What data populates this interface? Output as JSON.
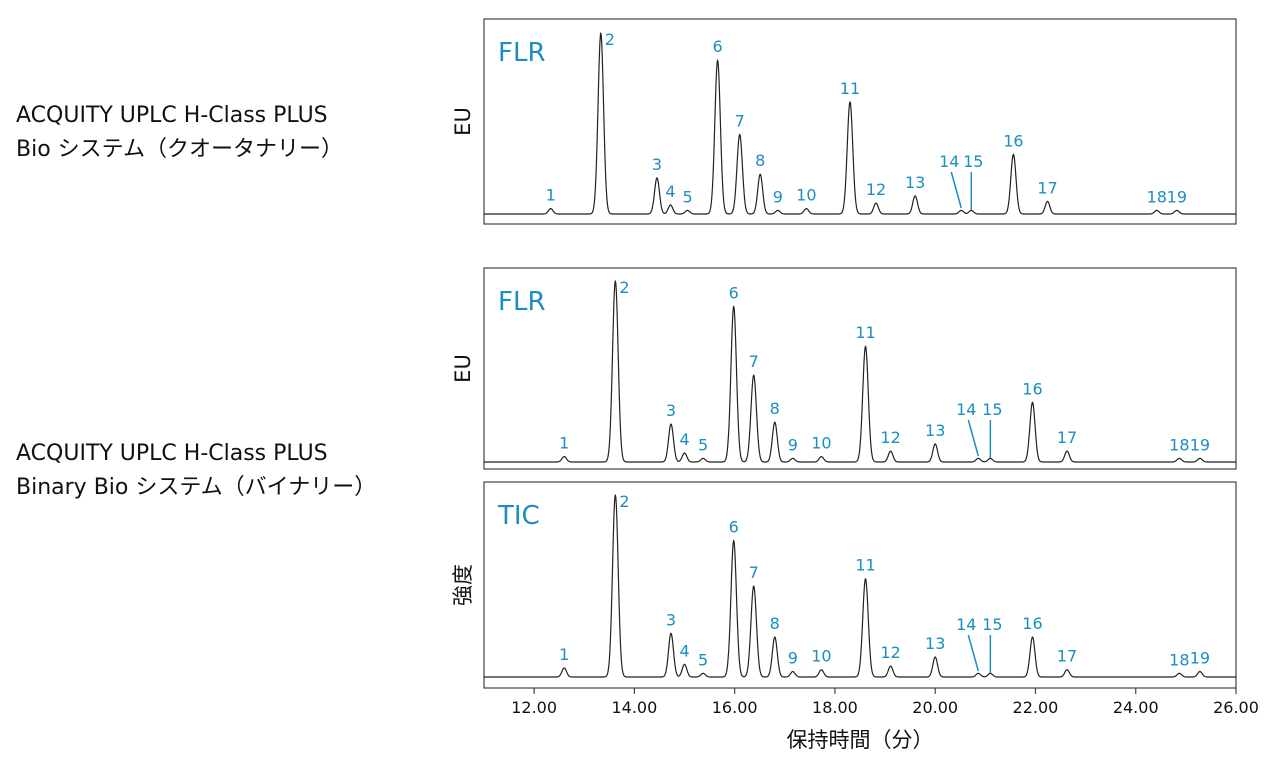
{
  "system_labels": {
    "top": [
      "ACQUITY UPLC H-Class PLUS",
      "Bio システム（クオータナリー）"
    ],
    "bottom": [
      "ACQUITY UPLC H-Class PLUS",
      "Binary Bio システム（バイナリー）"
    ]
  },
  "chart_data": {
    "type": "line",
    "xlabel": "保持時間（分）",
    "xlim": [
      11.0,
      26.0
    ],
    "xticks": [
      "12.00",
      "14.00",
      "16.00",
      "18.00",
      "20.00",
      "22.00",
      "24.00",
      "26.00"
    ],
    "tick_values": [
      12,
      14,
      16,
      18,
      20,
      22,
      24,
      26
    ],
    "panels": [
      {
        "name": "FLR",
        "ylabel": "EU",
        "ylim": [
          0,
          1.05
        ],
        "peaks": [
          {
            "label": "1",
            "rt": 12.33,
            "height": 0.03
          },
          {
            "label": "2",
            "rt": 13.33,
            "height": 1.0
          },
          {
            "label": "3",
            "rt": 14.45,
            "height": 0.2
          },
          {
            "label": "4",
            "rt": 14.72,
            "height": 0.05
          },
          {
            "label": "5",
            "rt": 15.06,
            "height": 0.02
          },
          {
            "label": "6",
            "rt": 15.66,
            "height": 0.85
          },
          {
            "label": "7",
            "rt": 16.1,
            "height": 0.44
          },
          {
            "label": "8",
            "rt": 16.51,
            "height": 0.22
          },
          {
            "label": "9",
            "rt": 16.86,
            "height": 0.02
          },
          {
            "label": "10",
            "rt": 17.43,
            "height": 0.03
          },
          {
            "label": "11",
            "rt": 18.3,
            "height": 0.62
          },
          {
            "label": "12",
            "rt": 18.82,
            "height": 0.06
          },
          {
            "label": "13",
            "rt": 19.6,
            "height": 0.1
          },
          {
            "label": "14",
            "rt": 20.52,
            "height": 0.02
          },
          {
            "label": "15",
            "rt": 20.72,
            "height": 0.02
          },
          {
            "label": "16",
            "rt": 21.56,
            "height": 0.33
          },
          {
            "label": "17",
            "rt": 22.24,
            "height": 0.07
          },
          {
            "label": "18",
            "rt": 24.42,
            "height": 0.02
          },
          {
            "label": "19",
            "rt": 24.82,
            "height": 0.02
          }
        ]
      },
      {
        "name": "FLR",
        "ylabel": "EU",
        "ylim": [
          0,
          1.05
        ],
        "peaks": [
          {
            "label": "1",
            "rt": 12.6,
            "height": 0.03
          },
          {
            "label": "2",
            "rt": 13.62,
            "height": 1.0
          },
          {
            "label": "3",
            "rt": 14.73,
            "height": 0.21
          },
          {
            "label": "4",
            "rt": 15.0,
            "height": 0.05
          },
          {
            "label": "5",
            "rt": 15.37,
            "height": 0.02
          },
          {
            "label": "6",
            "rt": 15.98,
            "height": 0.86
          },
          {
            "label": "7",
            "rt": 16.38,
            "height": 0.48
          },
          {
            "label": "8",
            "rt": 16.8,
            "height": 0.22
          },
          {
            "label": "9",
            "rt": 17.16,
            "height": 0.02
          },
          {
            "label": "10",
            "rt": 17.73,
            "height": 0.03
          },
          {
            "label": "11",
            "rt": 18.61,
            "height": 0.64
          },
          {
            "label": "12",
            "rt": 19.11,
            "height": 0.06
          },
          {
            "label": "13",
            "rt": 20.0,
            "height": 0.1
          },
          {
            "label": "14",
            "rt": 20.86,
            "height": 0.02
          },
          {
            "label": "15",
            "rt": 21.1,
            "height": 0.02
          },
          {
            "label": "16",
            "rt": 21.94,
            "height": 0.33
          },
          {
            "label": "17",
            "rt": 22.63,
            "height": 0.06
          },
          {
            "label": "18",
            "rt": 24.87,
            "height": 0.02
          },
          {
            "label": "19",
            "rt": 25.28,
            "height": 0.02
          }
        ]
      },
      {
        "name": "TIC",
        "ylabel": "強度",
        "ylim": [
          0,
          1.05
        ],
        "peaks": [
          {
            "label": "1",
            "rt": 12.6,
            "height": 0.05
          },
          {
            "label": "2",
            "rt": 13.62,
            "height": 1.0
          },
          {
            "label": "3",
            "rt": 14.73,
            "height": 0.24
          },
          {
            "label": "4",
            "rt": 15.0,
            "height": 0.07
          },
          {
            "label": "5",
            "rt": 15.37,
            "height": 0.02
          },
          {
            "label": "6",
            "rt": 15.98,
            "height": 0.75
          },
          {
            "label": "7",
            "rt": 16.38,
            "height": 0.5
          },
          {
            "label": "8",
            "rt": 16.8,
            "height": 0.22
          },
          {
            "label": "9",
            "rt": 17.16,
            "height": 0.03
          },
          {
            "label": "10",
            "rt": 17.73,
            "height": 0.04
          },
          {
            "label": "11",
            "rt": 18.61,
            "height": 0.54
          },
          {
            "label": "12",
            "rt": 19.11,
            "height": 0.06
          },
          {
            "label": "13",
            "rt": 20.0,
            "height": 0.11
          },
          {
            "label": "14",
            "rt": 20.86,
            "height": 0.02
          },
          {
            "label": "15",
            "rt": 21.1,
            "height": 0.02
          },
          {
            "label": "16",
            "rt": 21.94,
            "height": 0.22
          },
          {
            "label": "17",
            "rt": 22.63,
            "height": 0.04
          },
          {
            "label": "18",
            "rt": 24.87,
            "height": 0.02
          },
          {
            "label": "19",
            "rt": 25.28,
            "height": 0.03
          }
        ]
      }
    ]
  }
}
